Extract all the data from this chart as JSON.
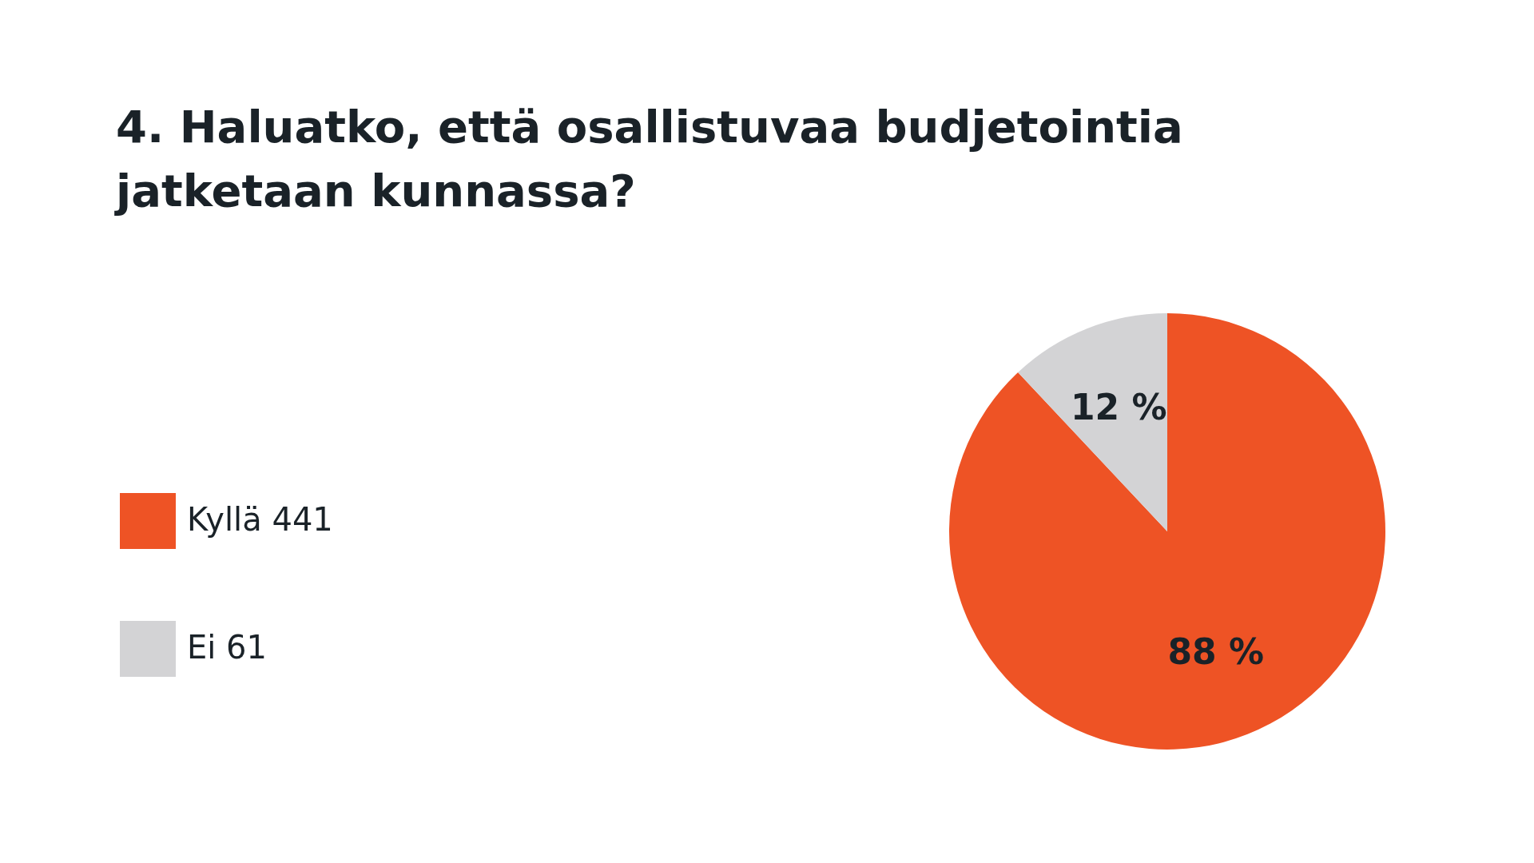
{
  "chart_data": {
    "type": "pie",
    "title": "4. Haluatko, että osallistuvaa budjetointia jatketaan kunnassa?",
    "categories": [
      "Kyllä 441",
      "Ei 61"
    ],
    "values": [
      88,
      12
    ],
    "colors": [
      "#ee5325",
      "#d3d3d5"
    ],
    "value_labels": [
      "88 %",
      "12 %"
    ],
    "legend": "left"
  }
}
